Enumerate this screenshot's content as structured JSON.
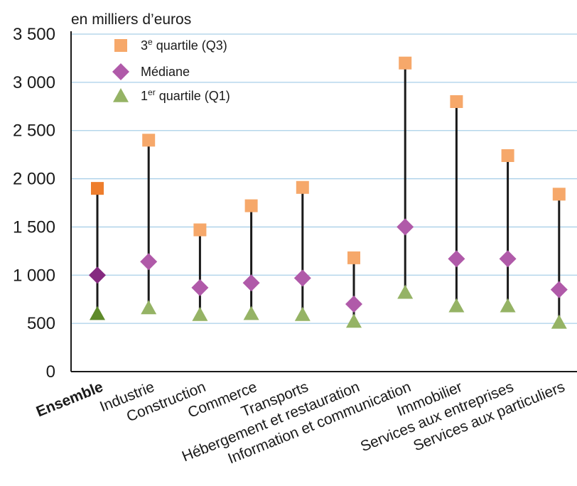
{
  "chart_data": {
    "type": "scatter",
    "unit_label": "en milliers d’euros",
    "ylim": [
      0,
      3500
    ],
    "yticks": [
      {
        "value": 0,
        "label": "0"
      },
      {
        "value": 500,
        "label": "500"
      },
      {
        "value": 1000,
        "label": "1 000"
      },
      {
        "value": 1500,
        "label": "1 500"
      },
      {
        "value": 2000,
        "label": "2 000"
      },
      {
        "value": 2500,
        "label": "2 500"
      },
      {
        "value": 3000,
        "label": "3 000"
      },
      {
        "value": 3500,
        "label": "3 500"
      }
    ],
    "grid": true,
    "legend_position": "top-left",
    "categories": [
      "Ensemble",
      "Industrie",
      "Construction",
      "Commerce",
      "Transports",
      "Hébergement et restauration",
      "Information et communication",
      "Immobilier",
      "Services aux entreprises",
      "Services aux particuliers"
    ],
    "series": [
      {
        "name": "3e quartile (Q3)",
        "legend_main": "3",
        "legend_sup": "e",
        "legend_rest": " quartile (Q3)",
        "marker": "square",
        "values": [
          1900,
          2400,
          1470,
          1720,
          1910,
          1180,
          3200,
          2800,
          2240,
          1840
        ]
      },
      {
        "name": "Médiane",
        "legend_main": "Médiane",
        "legend_sup": "",
        "legend_rest": "",
        "marker": "diamond",
        "values": [
          1000,
          1140,
          870,
          920,
          970,
          700,
          1500,
          1170,
          1170,
          850
        ]
      },
      {
        "name": "1er quartile (Q1)",
        "legend_main": "1",
        "legend_sup": "er",
        "legend_rest": " quartile (Q1)",
        "marker": "triangle",
        "values": [
          600,
          660,
          590,
          600,
          590,
          520,
          820,
          680,
          680,
          510
        ]
      }
    ],
    "colors": {
      "q3": "#f6a86a",
      "q3_highlight": "#ee7d2c",
      "median": "#b05aa9",
      "median_highlight": "#852a80",
      "q1": "#95b365",
      "q1_highlight": "#5e8a2a",
      "gridline": "#a9cfe8",
      "whisker": "#1a1a1a"
    }
  }
}
